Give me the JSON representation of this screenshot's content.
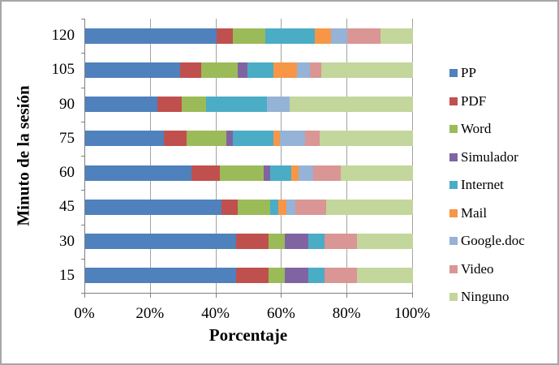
{
  "figure": {
    "border_color": "#a6a6a6",
    "background": "#ffffff",
    "axis_color": "#7f7f7f",
    "gridline_color": "#a3a3a3"
  },
  "chart_data": {
    "type": "bar",
    "subtype": "stacked-horizontal-100pct",
    "title": "",
    "xlabel": "Porcentaje",
    "ylabel": "Minuto de la sesión",
    "xlim": [
      0,
      100
    ],
    "x_ticks": [
      "0%",
      "20%",
      "40%",
      "60%",
      "80%",
      "100%"
    ],
    "grid": "vertical-major",
    "legend_position": "right",
    "categories": [
      "120",
      "105",
      "90",
      "75",
      "60",
      "45",
      "30",
      "15"
    ],
    "series": [
      {
        "name": "PP",
        "color": "#4f81bd",
        "values": [
          40,
          29,
          22,
          24,
          32.5,
          41.5,
          46,
          46
        ]
      },
      {
        "name": "PDF",
        "color": "#c0504d",
        "values": [
          5,
          6.5,
          7.5,
          7,
          8.5,
          5,
          10,
          10
        ]
      },
      {
        "name": "Word",
        "color": "#9bbb59",
        "values": [
          10,
          11,
          7.5,
          12,
          13.5,
          10,
          5,
          5
        ]
      },
      {
        "name": "Simulador",
        "color": "#8064a2",
        "values": [
          0,
          3,
          0,
          2,
          2,
          0,
          7,
          7
        ]
      },
      {
        "name": "Internet",
        "color": "#4bacc6",
        "values": [
          15,
          8,
          18.5,
          12.5,
          6.5,
          2.5,
          5,
          5
        ]
      },
      {
        "name": "Mail",
        "color": "#f79646",
        "values": [
          5,
          7,
          0,
          2,
          2,
          2.5,
          0,
          0
        ]
      },
      {
        "name": "Google.doc",
        "color": "#95b3d7",
        "values": [
          5,
          4,
          7,
          7.5,
          4.5,
          2.5,
          0,
          0
        ]
      },
      {
        "name": "Video",
        "color": "#d99694",
        "values": [
          10,
          3.5,
          0,
          4.5,
          8.5,
          9.5,
          10,
          10
        ]
      },
      {
        "name": "Ninguno",
        "color": "#c3d69b",
        "values": [
          10,
          28,
          37.5,
          28.5,
          22,
          26.5,
          17,
          17
        ]
      }
    ]
  }
}
